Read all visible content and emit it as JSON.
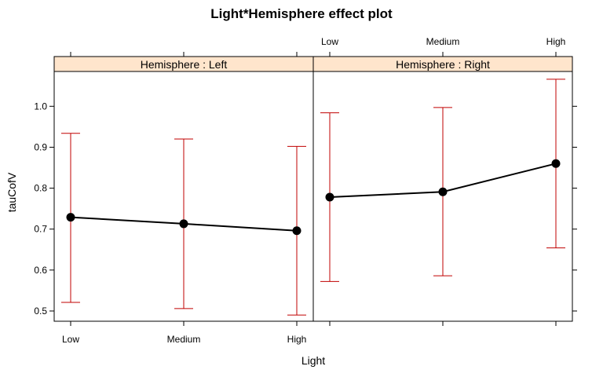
{
  "chart_data": {
    "type": "line",
    "title": "Light*Hemisphere effect plot",
    "xlabel": "Light",
    "ylabel": "tauCofV",
    "categories": [
      "Low",
      "Medium",
      "High"
    ],
    "ylim": [
      0.475,
      1.085
    ],
    "yticks": [
      0.5,
      0.6,
      0.7,
      0.8,
      0.9,
      1.0
    ],
    "ytick_labels": [
      "0.5",
      "0.6",
      "0.7",
      "0.8",
      "0.9",
      "1.0"
    ],
    "grid": false,
    "colors": {
      "line": "#000000",
      "errorbar": "#c00000",
      "strip": "#ffe5cc"
    },
    "panels": [
      {
        "strip": "Hemisphere : Left",
        "values": [
          0.729,
          0.713,
          0.696
        ],
        "lower": [
          0.521,
          0.506,
          0.49
        ],
        "upper": [
          0.934,
          0.92,
          0.902
        ]
      },
      {
        "strip": "Hemisphere : Right",
        "values": [
          0.778,
          0.791,
          0.86
        ],
        "lower": [
          0.572,
          0.586,
          0.654
        ],
        "upper": [
          0.984,
          0.997,
          1.066
        ]
      }
    ]
  }
}
